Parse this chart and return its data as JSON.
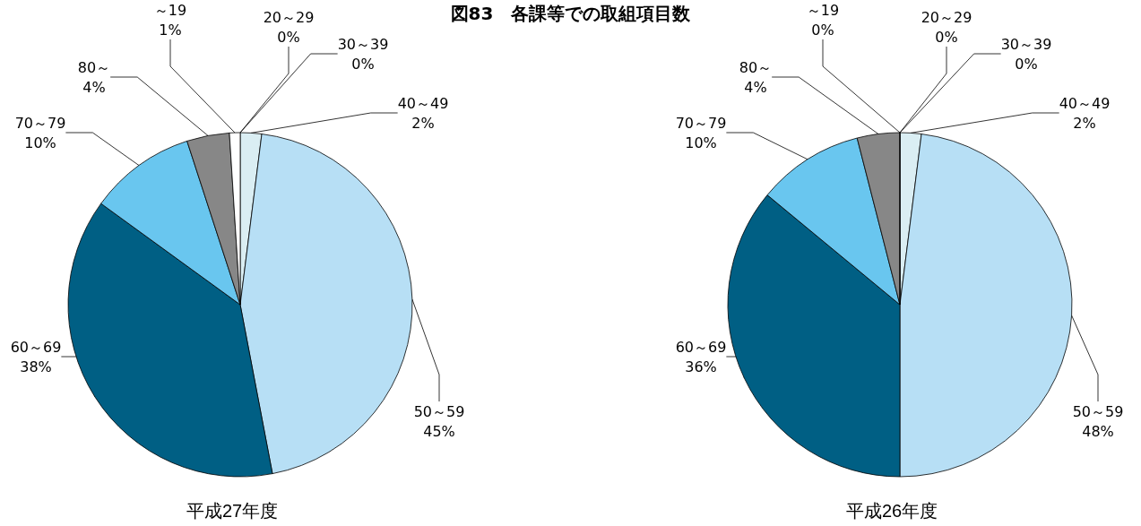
{
  "chart_data": [
    {
      "type": "pie",
      "title": "図83　各課等での取組項目数",
      "xlabel": "平成27年度",
      "categories": [
        "20～29",
        "30～39",
        "40～49",
        "50～59",
        "60～69",
        "70～79",
        "80～",
        "～19"
      ],
      "values": [
        0,
        0,
        2,
        45,
        38,
        10,
        4,
        1
      ],
      "value_labels": [
        "0%",
        "0%",
        "2%",
        "45%",
        "38%",
        "10%",
        "4%",
        "1%"
      ],
      "colors": [
        "#d9d9d9",
        "#a6a6a6",
        "#daeef3",
        "#b7dff5",
        "#005f84",
        "#69c6ef",
        "#878787",
        "#ffffff"
      ]
    },
    {
      "type": "pie",
      "xlabel": "平成26年度",
      "categories": [
        "20～29",
        "30～39",
        "40～49",
        "50～59",
        "60～69",
        "70～79",
        "80～",
        "～19"
      ],
      "values": [
        0,
        0,
        2,
        48,
        36,
        10,
        4,
        0
      ],
      "value_labels": [
        "0%",
        "0%",
        "2%",
        "48%",
        "36%",
        "10%",
        "4%",
        "0%"
      ],
      "colors": [
        "#d9d9d9",
        "#a6a6a6",
        "#daeef3",
        "#b7dff5",
        "#005f84",
        "#69c6ef",
        "#878787",
        "#ffffff"
      ]
    }
  ]
}
